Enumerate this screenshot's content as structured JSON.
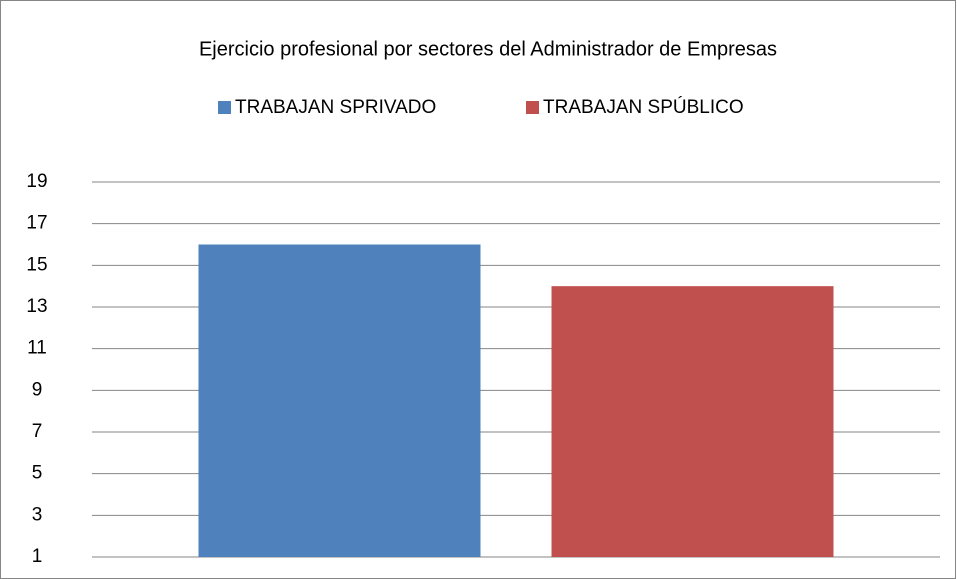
{
  "chart_data": {
    "type": "bar",
    "title": "Ejercicio profesional por sectores del Administrador de Empresas",
    "categories": [
      null
    ],
    "series": [
      {
        "name": "TRABAJAN SPRIVADO",
        "color": "#4f81bd",
        "values": [
          16
        ]
      },
      {
        "name": "TRABAJAN SPÚBLICO",
        "color": "#c0504d",
        "values": [
          14
        ]
      }
    ],
    "ylim": [
      1,
      19
    ],
    "yticks": [
      1,
      3,
      5,
      7,
      9,
      11,
      13,
      15,
      17,
      19
    ],
    "grid": true,
    "legend": "top"
  }
}
